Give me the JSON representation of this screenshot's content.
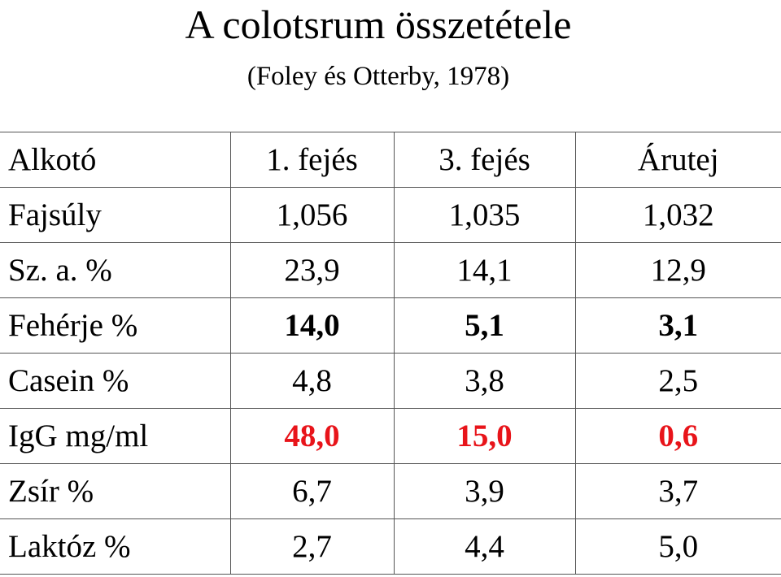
{
  "header": {
    "title": "A colotsrum összetétele",
    "subtitle": "(Foley és Otterby, 1978)"
  },
  "table": {
    "columns": [
      "Alkotó",
      "1. fejés",
      "3. fejés",
      "Árutej"
    ],
    "rows": [
      [
        "Fajsúly",
        "1,056",
        "1,035",
        "1,032"
      ],
      [
        "Sz. a. %",
        "23,9",
        "14,1",
        "12,9"
      ],
      [
        "Fehérje %",
        "14,0",
        "5,1",
        "3,1"
      ],
      [
        "Casein %",
        "4,8",
        "3,8",
        "2,5"
      ],
      [
        "IgG mg/ml",
        "48,0",
        "15,0",
        "0,6"
      ],
      [
        "Zsír %",
        "6,7",
        "3,9",
        "3,7"
      ],
      [
        "Laktóz %",
        "2,7",
        "4,4",
        "5,0"
      ]
    ]
  }
}
